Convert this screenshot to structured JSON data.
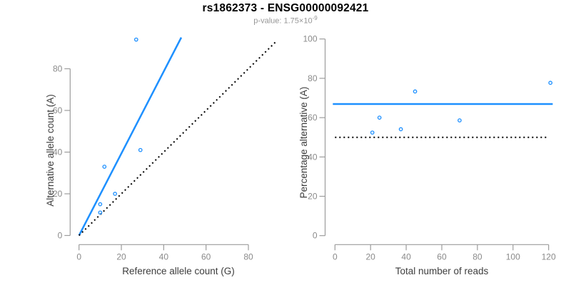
{
  "header": {
    "title": "rs1862373 - ENSG00000092421",
    "subtitle_prefix": "p-value: 1.75×10",
    "subtitle_exponent": "-9"
  },
  "colors": {
    "accent_blue": "#1E90FF",
    "dotted_line_black": "#000000",
    "axis_line_gray": "#9c9c9c",
    "tick_label_gray": "#8a8a8a",
    "axis_title_gray": "#3d3d3d",
    "title_black": "#000000",
    "subtitle_gray": "#979797",
    "background": "#ffffff"
  },
  "chart_data": [
    {
      "type": "scatter",
      "name": "allele-counts-scatter",
      "xlabel": "Reference allele count (G)",
      "ylabel": "Alternative allele count (A)",
      "xticks": [
        0,
        20,
        40,
        60,
        80
      ],
      "yticks": [
        0,
        20,
        40,
        60,
        80
      ],
      "xlim": [
        0,
        94
      ],
      "ylim": [
        0,
        95
      ],
      "grid": false,
      "legend": null,
      "points": [
        {
          "x": 10,
          "y": 11
        },
        {
          "x": 10,
          "y": 15
        },
        {
          "x": 12,
          "y": 33
        },
        {
          "x": 17,
          "y": 20
        },
        {
          "x": 27,
          "y": 94
        },
        {
          "x": 29,
          "y": 41
        }
      ],
      "lines": [
        {
          "name": "regression-line",
          "style": "solid",
          "color": "blue",
          "x1": 0,
          "y1": 0,
          "x2": 48.3,
          "y2": 95
        },
        {
          "name": "identity-line",
          "style": "dotted",
          "color": "black",
          "x1": 0,
          "y1": 0,
          "x2": 93.5,
          "y2": 93.5
        }
      ]
    },
    {
      "type": "scatter",
      "name": "percentage-alternative-scatter",
      "xlabel": "Total number of reads",
      "ylabel": "Percentage alternative (A)",
      "xticks": [
        0,
        20,
        40,
        60,
        80,
        100,
        120
      ],
      "yticks": [
        0,
        20,
        40,
        60,
        80,
        100
      ],
      "xlim": [
        0,
        122
      ],
      "ylim": [
        0,
        100
      ],
      "grid": false,
      "legend": null,
      "points": [
        {
          "x": 21,
          "y": 52.4
        },
        {
          "x": 25,
          "y": 60.0
        },
        {
          "x": 37,
          "y": 54.1
        },
        {
          "x": 45,
          "y": 73.3
        },
        {
          "x": 70,
          "y": 58.6
        },
        {
          "x": 121,
          "y": 77.7
        }
      ],
      "lines": [
        {
          "name": "mean-percentage-line",
          "style": "solid",
          "color": "blue",
          "x1": -1.2,
          "y1": 66.9,
          "x2": 122.3,
          "y2": 66.9
        },
        {
          "name": "null-50-percent-line",
          "style": "dotted",
          "color": "black",
          "x1": 0,
          "y1": 50,
          "x2": 120,
          "y2": 50
        }
      ]
    }
  ]
}
